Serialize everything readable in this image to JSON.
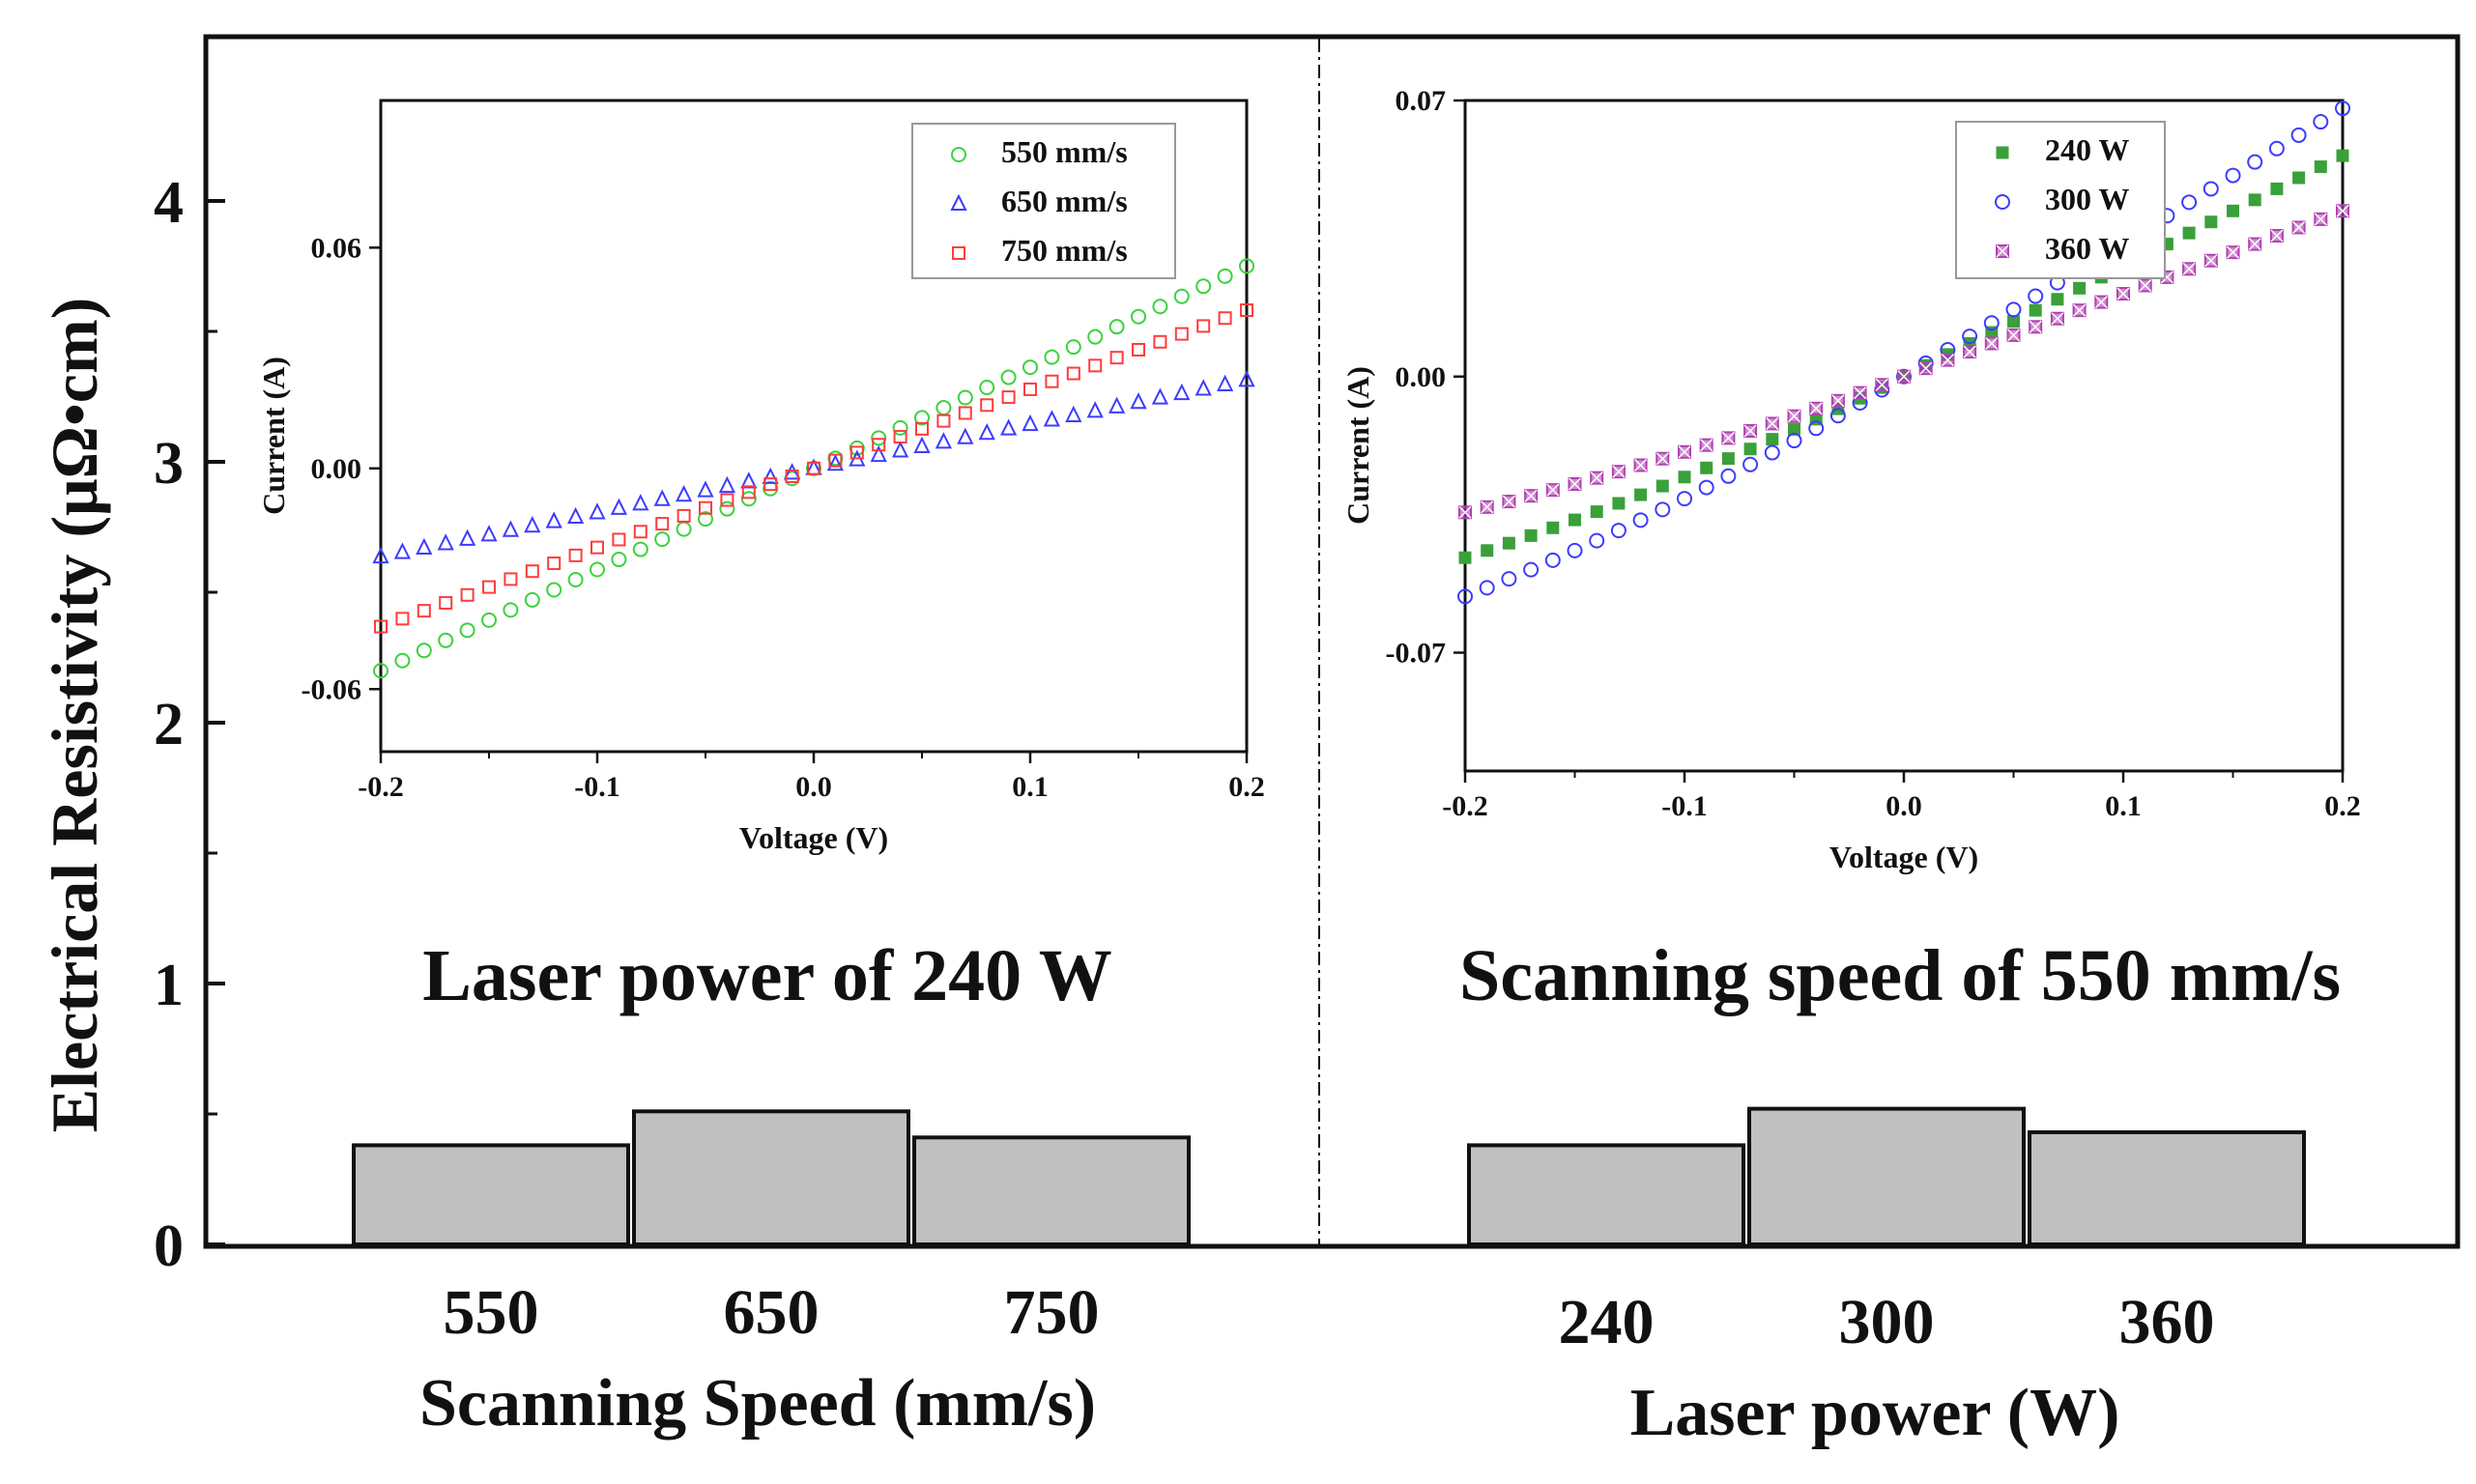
{
  "main_axis": {
    "ylabel": "Electrical Resistivity (μΩ•cm)",
    "ylim": [
      0,
      4.5
    ],
    "yticks": [
      "0",
      "1",
      "2",
      "3",
      "4"
    ]
  },
  "colors": {
    "bar_fill": "#c0c0c0",
    "green": "#3cd23c",
    "blue": "#3c3cff",
    "red": "#ff3c3c",
    "dark_green": "#3aa03a",
    "purple": "#b040b0"
  },
  "chart_data": [
    {
      "type": "bar",
      "panel": "left",
      "title": "Laser power of 240 W",
      "xlabel": "Scanning Speed (mm/s)",
      "ylabel": "Electrical Resistivity (μΩ•cm)",
      "categories": [
        "550",
        "650",
        "750"
      ],
      "values": [
        0.38,
        0.51,
        0.41
      ],
      "ylim": [
        0,
        4.5
      ]
    },
    {
      "type": "bar",
      "panel": "right",
      "title": "Scanning speed of 550 mm/s",
      "xlabel": "Laser power (W)",
      "ylabel": "Electrical Resistivity (μΩ•cm)",
      "categories": [
        "240",
        "300",
        "360"
      ],
      "values": [
        0.38,
        0.52,
        0.43
      ],
      "ylim": [
        0,
        4.5
      ]
    },
    {
      "type": "scatter",
      "panel": "left-inset",
      "xlabel": "Voltage (V)",
      "ylabel": "Current (A)",
      "xlim": [
        -0.2,
        0.2
      ],
      "ylim": [
        -0.077,
        0.1
      ],
      "xticks": [
        "-0.2",
        "-0.1",
        "0.0",
        "0.1",
        "0.2"
      ],
      "yticks": [
        "-0.06",
        "0.00",
        "0.06"
      ],
      "series": [
        {
          "name": "550 mm/s",
          "marker": "circle",
          "slope": 0.275
        },
        {
          "name": "650 mm/s",
          "marker": "triangle",
          "slope": 0.12
        },
        {
          "name": "750 mm/s",
          "marker": "square",
          "slope": 0.215
        }
      ]
    },
    {
      "type": "scatter",
      "panel": "right-inset",
      "xlabel": "Voltage (V)",
      "ylabel": "Current (A)",
      "xlim": [
        -0.2,
        0.2
      ],
      "ylim": [
        -0.1,
        0.07
      ],
      "xticks": [
        "-0.2",
        "-0.1",
        "0.0",
        "0.1",
        "0.2"
      ],
      "yticks": [
        "-0.07",
        "0.00",
        "0.07"
      ],
      "series": [
        {
          "name": "240 W",
          "marker": "filled-square",
          "slope": 0.28
        },
        {
          "name": "300 W",
          "marker": "circle",
          "slope": 0.34
        },
        {
          "name": "360 W",
          "marker": "crossed-square",
          "slope": 0.21
        }
      ]
    }
  ]
}
